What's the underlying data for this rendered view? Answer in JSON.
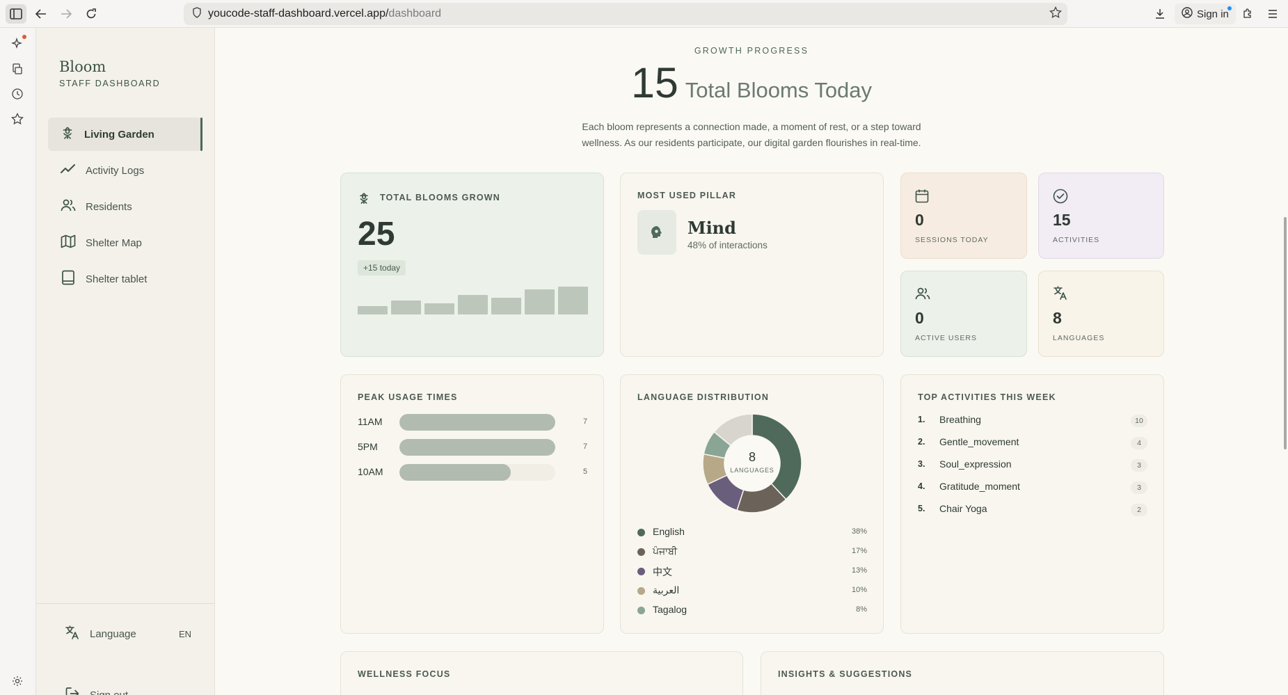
{
  "browser": {
    "url_host": "youcode-staff-dashboard.vercel.app/",
    "url_path": "dashboard",
    "sign_in_label": "Sign in"
  },
  "sidebar": {
    "brand": "Bloom",
    "subtitle": "STAFF DASHBOARD",
    "items": [
      {
        "label": "Living Garden",
        "icon": "flower-icon"
      },
      {
        "label": "Activity Logs",
        "icon": "trend-line-icon"
      },
      {
        "label": "Residents",
        "icon": "users-icon"
      },
      {
        "label": "Shelter Map",
        "icon": "map-icon"
      },
      {
        "label": "Shelter tablet",
        "icon": "tablet-icon"
      }
    ],
    "language_label": "Language",
    "language_code": "EN",
    "sign_out_label": "Sign out"
  },
  "header": {
    "eyebrow": "GROWTH PROGRESS",
    "count": "15",
    "count_label": "Total Blooms Today",
    "description": "Each bloom represents a connection made, a moment of rest, or a step toward wellness. As our residents participate, our digital garden flourishes in real-time."
  },
  "blooms": {
    "title": "TOTAL BLOOMS GROWN",
    "value": "25",
    "delta": "+15 today",
    "trend": [
      3,
      5,
      4,
      7,
      6,
      9,
      10
    ]
  },
  "pillar": {
    "title": "MOST USED PILLAR",
    "name": "Mind",
    "subtitle": "48% of interactions"
  },
  "stats": [
    {
      "value": "0",
      "label": "SESSIONS TODAY",
      "icon": "calendar-icon"
    },
    {
      "value": "15",
      "label": "ACTIVITIES",
      "icon": "check-circle-icon"
    },
    {
      "value": "0",
      "label": "ACTIVE USERS",
      "icon": "users-icon"
    },
    {
      "value": "8",
      "label": "LANGUAGES",
      "icon": "translate-icon"
    }
  ],
  "peak": {
    "title": "PEAK USAGE TIMES",
    "max": 7,
    "rows": [
      {
        "label": "11AM",
        "value": 7
      },
      {
        "label": "5PM",
        "value": 7
      },
      {
        "label": "10AM",
        "value": 5
      }
    ]
  },
  "languages": {
    "title": "LANGUAGE DISTRIBUTION",
    "center_value": "8",
    "center_label": "LANGUAGES",
    "legend": [
      {
        "name": "English",
        "pct": "38%",
        "color": "#4f6a5a"
      },
      {
        "name": "ਪੰਜਾਬੀ",
        "pct": "17%",
        "color": "#6b625a"
      },
      {
        "name": "中文",
        "pct": "13%",
        "color": "#6a5e7d"
      },
      {
        "name": "العربية",
        "pct": "10%",
        "color": "#b7a887"
      },
      {
        "name": "Tagalog",
        "pct": "8%",
        "color": "#8aa596"
      }
    ],
    "other_color": "#d7d5cd"
  },
  "activities": {
    "title": "TOP ACTIVITIES THIS WEEK",
    "items": [
      {
        "rank": "1.",
        "name": "Breathing",
        "count": "10"
      },
      {
        "rank": "2.",
        "name": "Gentle_movement",
        "count": "4"
      },
      {
        "rank": "3.",
        "name": "Soul_expression",
        "count": "3"
      },
      {
        "rank": "4.",
        "name": "Gratitude_moment",
        "count": "3"
      },
      {
        "rank": "5.",
        "name": "Chair Yoga",
        "count": "2"
      }
    ]
  },
  "wellness": {
    "title": "WELLNESS FOCUS"
  },
  "insights": {
    "title": "INSIGHTS & SUGGESTIONS"
  }
}
